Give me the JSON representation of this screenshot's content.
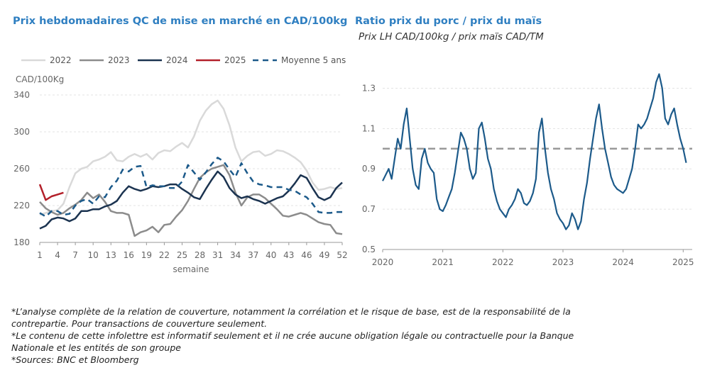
{
  "chart_data": [
    {
      "type": "line",
      "title": "Prix hebdomadaires QC de mise en marché en CAD/100kg",
      "ylabel": "CAD/100Kg",
      "xlabel": "semaine",
      "ylim": [
        180,
        340
      ],
      "xlim": [
        1,
        52
      ],
      "yticks": [
        "180",
        "220",
        "260",
        "300",
        "340"
      ],
      "xticks": [
        "1",
        "4",
        "7",
        "10",
        "13",
        "16",
        "19",
        "22",
        "25",
        "28",
        "31",
        "34",
        "37",
        "40",
        "43",
        "46",
        "49",
        "52"
      ],
      "grid": "horizontal",
      "legend_position": "top",
      "series": [
        {
          "name": "2022",
          "color": "#d9d9d9",
          "dash": false,
          "x": [
            1,
            2,
            3,
            4,
            5,
            6,
            7,
            8,
            9,
            10,
            11,
            12,
            13,
            14,
            15,
            16,
            17,
            18,
            19,
            20,
            21,
            22,
            23,
            24,
            25,
            26,
            27,
            28,
            29,
            30,
            31,
            32,
            33,
            34,
            35,
            36,
            37,
            38,
            39,
            40,
            41,
            42,
            43,
            44,
            45,
            46,
            47,
            48,
            49,
            50,
            51,
            52
          ],
          "values": [
            210,
            212,
            214,
            215,
            222,
            240,
            255,
            260,
            262,
            268,
            270,
            273,
            278,
            269,
            268,
            273,
            276,
            273,
            276,
            270,
            277,
            280,
            279,
            284,
            288,
            283,
            295,
            312,
            323,
            330,
            334,
            325,
            307,
            283,
            268,
            274,
            278,
            279,
            274,
            276,
            280,
            279,
            276,
            272,
            267,
            258,
            245,
            237,
            238,
            240,
            238,
            239
          ]
        },
        {
          "name": "2023",
          "color": "#8c8c8c",
          "dash": false,
          "x": [
            1,
            2,
            3,
            4,
            5,
            6,
            7,
            8,
            9,
            10,
            11,
            12,
            13,
            14,
            15,
            16,
            17,
            18,
            19,
            20,
            21,
            22,
            23,
            24,
            25,
            26,
            27,
            28,
            29,
            30,
            31,
            32,
            33,
            34,
            35,
            36,
            37,
            38,
            39,
            40,
            41,
            42,
            43,
            44,
            45,
            46,
            47,
            48,
            49,
            50,
            51,
            52
          ],
          "values": [
            224,
            217,
            213,
            210,
            212,
            217,
            221,
            226,
            234,
            228,
            232,
            224,
            214,
            212,
            212,
            210,
            187,
            191,
            193,
            197,
            191,
            199,
            200,
            208,
            215,
            225,
            238,
            250,
            256,
            260,
            262,
            264,
            253,
            234,
            220,
            229,
            232,
            232,
            228,
            222,
            216,
            209,
            208,
            210,
            212,
            210,
            206,
            202,
            200,
            199,
            190,
            189
          ]
        },
        {
          "name": "2024",
          "color": "#1b3350",
          "dash": false,
          "x": [
            1,
            2,
            3,
            4,
            5,
            6,
            7,
            8,
            9,
            10,
            11,
            12,
            13,
            14,
            15,
            16,
            17,
            18,
            19,
            20,
            21,
            22,
            23,
            24,
            25,
            26,
            27,
            28,
            29,
            30,
            31,
            32,
            33,
            34,
            35,
            36,
            37,
            38,
            39,
            40,
            41,
            42,
            43,
            44,
            45,
            46,
            47,
            48,
            49,
            50,
            51,
            52
          ],
          "values": [
            195,
            198,
            205,
            207,
            206,
            203,
            206,
            214,
            214,
            216,
            216,
            219,
            221,
            225,
            234,
            241,
            238,
            236,
            238,
            241,
            240,
            241,
            243,
            243,
            238,
            234,
            229,
            227,
            238,
            248,
            257,
            251,
            239,
            232,
            228,
            230,
            227,
            225,
            222,
            225,
            228,
            230,
            236,
            244,
            253,
            250,
            239,
            229,
            226,
            229,
            239,
            245
          ]
        },
        {
          "name": "2025",
          "color": "#b3202a",
          "dash": false,
          "x": [
            1,
            2,
            3,
            4,
            5
          ],
          "values": [
            243,
            226,
            230,
            232,
            234
          ]
        },
        {
          "name": "Moyenne 5 ans",
          "color": "#1c5a8a",
          "dash": true,
          "x": [
            1,
            2,
            3,
            4,
            5,
            6,
            7,
            8,
            9,
            10,
            11,
            12,
            13,
            14,
            15,
            16,
            17,
            18,
            19,
            20,
            21,
            22,
            23,
            24,
            25,
            26,
            27,
            28,
            29,
            30,
            31,
            32,
            33,
            34,
            35,
            36,
            37,
            38,
            39,
            40,
            41,
            42,
            43,
            44,
            45,
            46,
            47,
            48,
            49,
            50,
            51,
            52
          ],
          "values": [
            212,
            208,
            214,
            214,
            210,
            211,
            220,
            225,
            227,
            222,
            230,
            229,
            240,
            247,
            259,
            257,
            262,
            263,
            240,
            242,
            241,
            241,
            239,
            239,
            246,
            264,
            256,
            248,
            256,
            265,
            272,
            268,
            259,
            251,
            266,
            255,
            246,
            243,
            242,
            240,
            240,
            240,
            237,
            236,
            232,
            229,
            222,
            213,
            212,
            212,
            213,
            213
          ]
        }
      ]
    },
    {
      "type": "line",
      "title": "Ratio prix du porc / prix du maïs",
      "subtitle": "Prix LH CAD/100kg / prix maïs CAD/TM",
      "ylim": [
        0.5,
        1.4
      ],
      "yticks": [
        "0.5",
        "0.7",
        "0.9",
        "1.1",
        "1.3"
      ],
      "xticks": [
        "2020",
        "2021",
        "2022",
        "2023",
        "2024",
        "2025"
      ],
      "xlim": [
        2020.0,
        2025.15
      ],
      "grid": "horizontal",
      "reference_line": 1.0,
      "series": [
        {
          "name": "",
          "color": "#1c5a8a",
          "x": [
            2020.0,
            2020.05,
            2020.1,
            2020.15,
            2020.2,
            2020.25,
            2020.3,
            2020.35,
            2020.4,
            2020.45,
            2020.5,
            2020.55,
            2020.6,
            2020.65,
            2020.7,
            2020.75,
            2020.8,
            2020.85,
            2020.9,
            2020.95,
            2021.0,
            2021.05,
            2021.1,
            2021.15,
            2021.2,
            2021.25,
            2021.3,
            2021.35,
            2021.4,
            2021.45,
            2021.5,
            2021.55,
            2021.6,
            2021.65,
            2021.7,
            2021.75,
            2021.8,
            2021.85,
            2021.9,
            2021.95,
            2022.0,
            2022.05,
            2022.1,
            2022.15,
            2022.2,
            2022.25,
            2022.3,
            2022.35,
            2022.4,
            2022.45,
            2022.5,
            2022.55,
            2022.6,
            2022.65,
            2022.7,
            2022.75,
            2022.8,
            2022.85,
            2022.9,
            2022.95,
            2023.0,
            2023.05,
            2023.1,
            2023.15,
            2023.2,
            2023.25,
            2023.3,
            2023.35,
            2023.4,
            2023.45,
            2023.5,
            2023.55,
            2023.6,
            2023.65,
            2023.7,
            2023.75,
            2023.8,
            2023.85,
            2023.9,
            2023.95,
            2024.0,
            2024.05,
            2024.1,
            2024.15,
            2024.2,
            2024.25,
            2024.3,
            2024.35,
            2024.4,
            2024.45,
            2024.5,
            2024.55,
            2024.6,
            2024.65,
            2024.7,
            2024.75,
            2024.8,
            2024.85,
            2024.9,
            2024.95,
            2025.0,
            2025.05
          ],
          "values": [
            0.84,
            0.87,
            0.9,
            0.85,
            0.95,
            1.05,
            1.0,
            1.12,
            1.2,
            1.05,
            0.9,
            0.82,
            0.8,
            0.95,
            1.0,
            0.93,
            0.9,
            0.88,
            0.75,
            0.7,
            0.69,
            0.72,
            0.76,
            0.8,
            0.88,
            0.98,
            1.08,
            1.05,
            1.0,
            0.9,
            0.85,
            0.88,
            1.1,
            1.13,
            1.05,
            0.95,
            0.9,
            0.8,
            0.74,
            0.7,
            0.68,
            0.66,
            0.7,
            0.72,
            0.75,
            0.8,
            0.78,
            0.73,
            0.72,
            0.74,
            0.78,
            0.85,
            1.08,
            1.15,
            1.0,
            0.88,
            0.8,
            0.75,
            0.68,
            0.65,
            0.63,
            0.6,
            0.62,
            0.68,
            0.65,
            0.6,
            0.64,
            0.75,
            0.83,
            0.95,
            1.05,
            1.15,
            1.22,
            1.1,
            1.0,
            0.93,
            0.86,
            0.82,
            0.8,
            0.79,
            0.78,
            0.8,
            0.85,
            0.9,
            1.0,
            1.12,
            1.1,
            1.12,
            1.15,
            1.2,
            1.25,
            1.33,
            1.37,
            1.3,
            1.15,
            1.12,
            1.17,
            1.2,
            1.12,
            1.05,
            1.0,
            0.93
          ]
        }
      ]
    }
  ],
  "footnotes": [
    "*L’analyse complète de la relation de couverture, notamment la corrélation et le risque de base, est de la responsabilité de la",
    "contrepartie. Pour transactions de couverture seulement.",
    "*Le contenu de cette infolettre est informatif seulement et il ne crée aucune obligation légale ou contractuelle pour la Banque",
    "Nationale et les entités de son groupe",
    "*Sources: BNC et Bloomberg"
  ]
}
